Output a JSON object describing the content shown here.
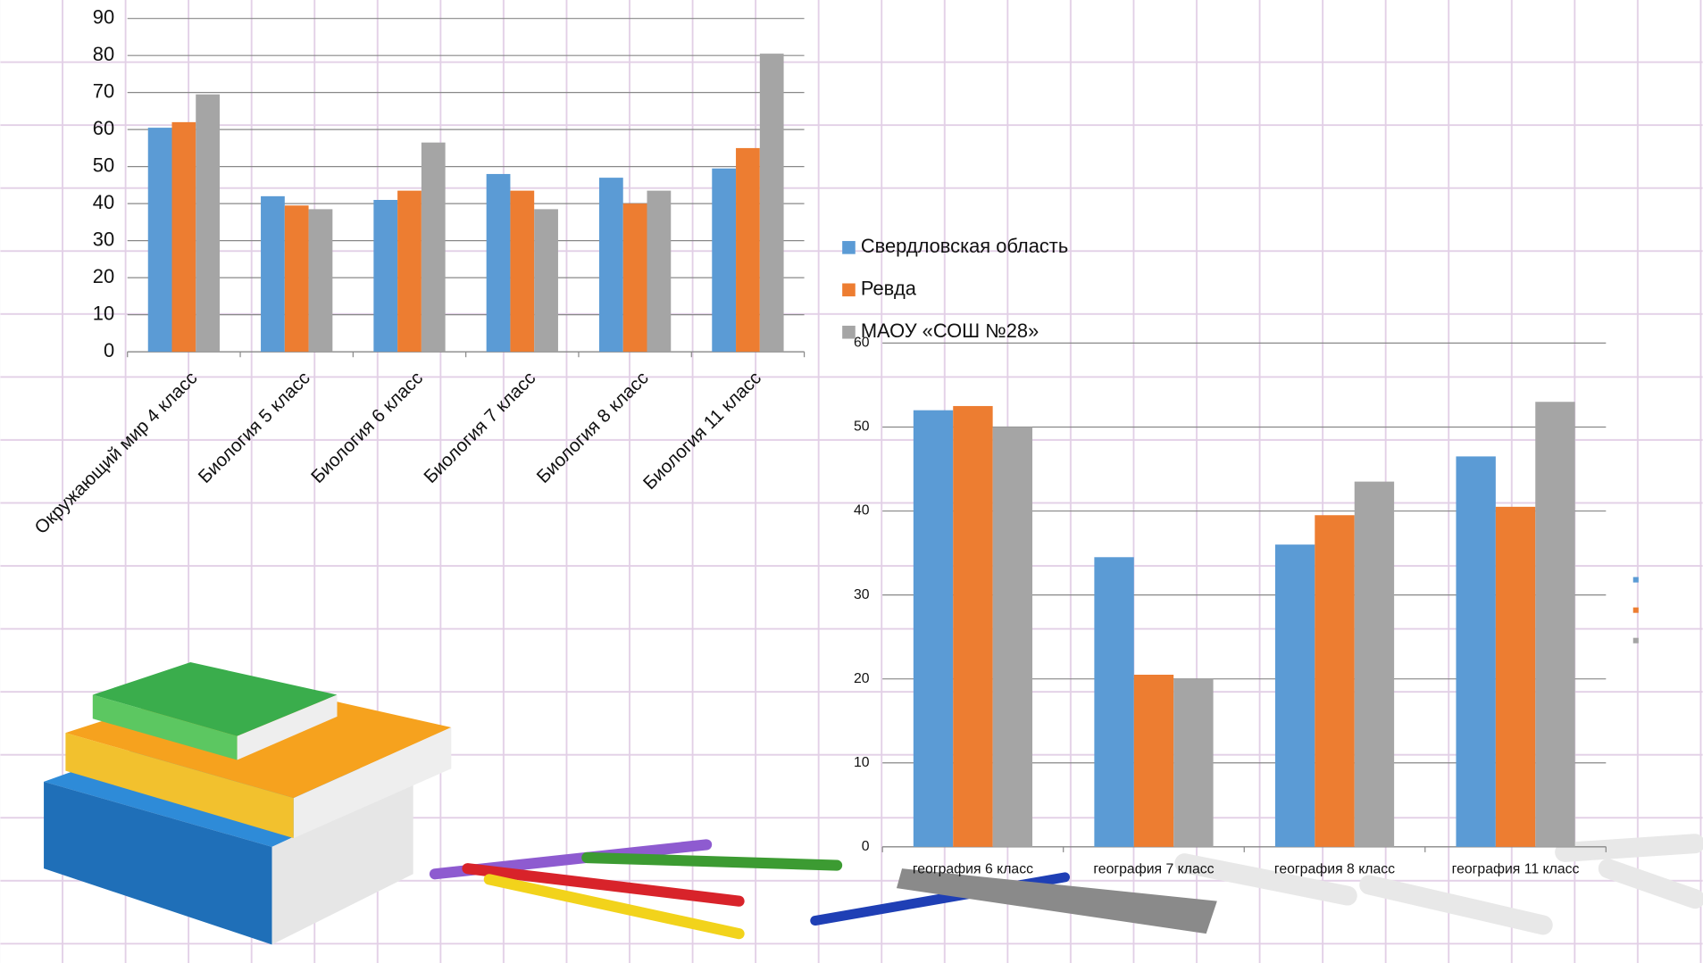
{
  "charts": [
    {
      "chart_data": {
        "type": "bar",
        "categories": [
          "Окружающий мир 4 класс",
          "Биология 5 класс",
          "Биология 6 класс",
          "Биология 7 класс",
          "Биология 8 класс",
          "Биология 11 класс"
        ],
        "series": [
          {
            "name": "Свердловская область",
            "color": "#5b9bd5",
            "values": [
              60.5,
              42,
              41,
              48,
              47,
              49.5
            ]
          },
          {
            "name": "Ревда",
            "color": "#ed7d31",
            "values": [
              62,
              39.5,
              43.5,
              43.5,
              40,
              55
            ]
          },
          {
            "name": "МАОУ «СОШ №28»",
            "color": "#a5a5a5",
            "values": [
              69.5,
              38.5,
              56.5,
              38.5,
              43.5,
              80.5
            ]
          }
        ],
        "ylim": [
          0,
          90
        ],
        "yticks": [
          0,
          10,
          20,
          30,
          40,
          50,
          60,
          70,
          80,
          90
        ],
        "grid": true,
        "legend": "right"
      }
    },
    {
      "chart_data": {
        "type": "bar",
        "categories": [
          "география 6 класс",
          "география 7 класс",
          "география 8 класс",
          "география 11 класс"
        ],
        "series": [
          {
            "color": "#5b9bd5",
            "values": [
              52,
              34.5,
              36,
              46.5
            ]
          },
          {
            "color": "#ed7d31",
            "values": [
              52.5,
              20.5,
              39.5,
              40.5
            ]
          },
          {
            "color": "#a5a5a5",
            "values": [
              50,
              20,
              43.5,
              53
            ]
          }
        ],
        "ylim": [
          0,
          60
        ],
        "yticks": [
          0,
          10,
          20,
          30,
          40,
          50,
          60
        ],
        "grid": true,
        "legend": "right"
      }
    }
  ]
}
